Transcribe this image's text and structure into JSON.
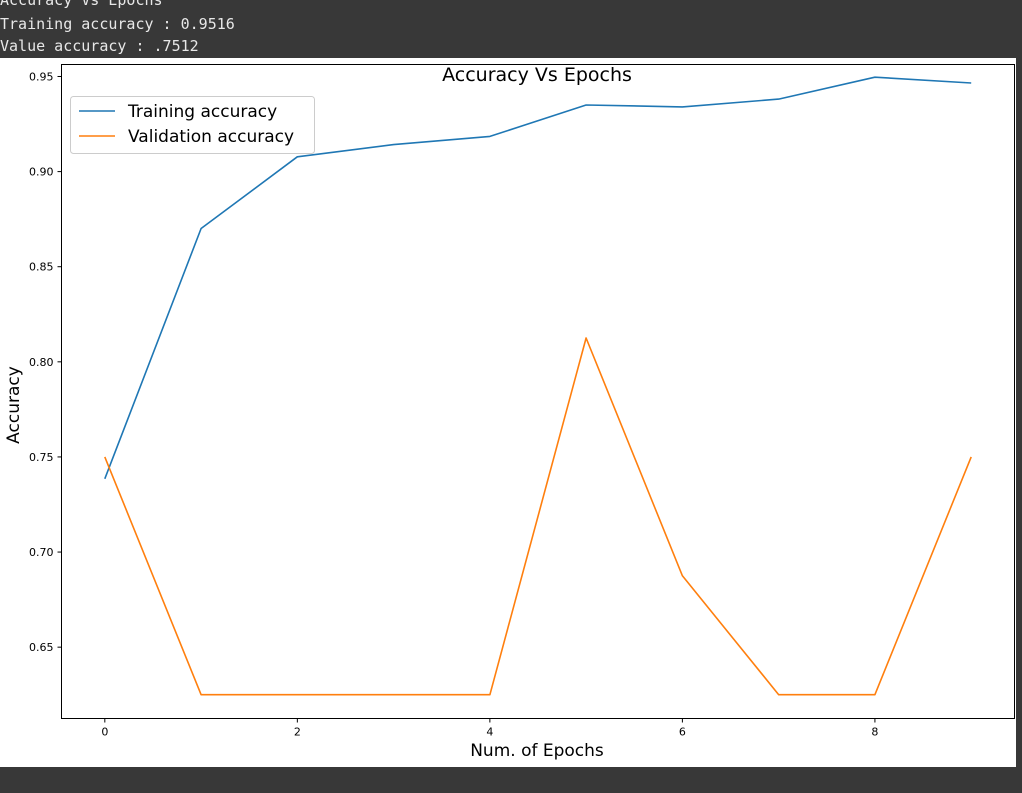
{
  "console": {
    "lines": [
      "Accuracy Vs Epochs",
      "Training accuracy : 0.9516",
      "Value accuracy : .7512"
    ]
  },
  "chart_data": {
    "type": "line",
    "title": "Accuracy Vs Epochs",
    "xlabel": "Num. of Epochs",
    "ylabel": "Accuracy",
    "xlim": [
      -0.45,
      9.45
    ],
    "ylim": [
      0.6125,
      0.9563
    ],
    "xticks": [
      0,
      2,
      4,
      6,
      8
    ],
    "xtick_labels": [
      "0",
      "2",
      "4",
      "6",
      "8"
    ],
    "yticks": [
      0.65,
      0.7,
      0.75,
      0.8,
      0.85,
      0.9,
      0.95
    ],
    "ytick_labels": [
      "0.65",
      "0.70",
      "0.75",
      "0.80",
      "0.85",
      "0.90",
      "0.95"
    ],
    "grid": false,
    "legend_position": "upper-left",
    "x": [
      0,
      1,
      2,
      3,
      4,
      5,
      6,
      7,
      8,
      9
    ],
    "series": [
      {
        "name": "Training accuracy",
        "color": "#1f77b4",
        "values": [
          0.7385,
          0.8701,
          0.9078,
          0.9142,
          0.9185,
          0.935,
          0.934,
          0.9381,
          0.9496,
          0.9466
        ]
      },
      {
        "name": "Validation accuracy",
        "color": "#ff7f0e",
        "values": [
          0.75,
          0.625,
          0.625,
          0.625,
          0.625,
          0.8125,
          0.6875,
          0.625,
          0.625,
          0.75
        ]
      }
    ]
  }
}
